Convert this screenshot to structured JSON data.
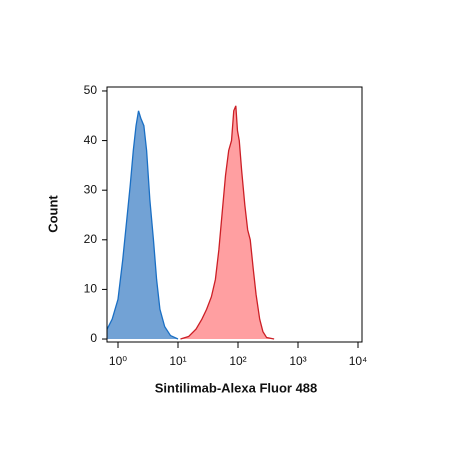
{
  "chart_data": {
    "type": "area",
    "x_label": "Sintilimab-Alexa Fluor 488",
    "y_label": "Count",
    "xscale": "log",
    "xlim": [
      0.656,
      11660
    ],
    "xticks": [
      {
        "value": 1,
        "label": "10⁰"
      },
      {
        "value": 10,
        "label": "10¹"
      },
      {
        "value": 100,
        "label": "10²"
      },
      {
        "value": 1000,
        "label": "10³"
      },
      {
        "value": 10000,
        "label": "10⁴"
      }
    ],
    "ylim": [
      -0.6,
      50.8
    ],
    "yticks": [
      0,
      10,
      20,
      30,
      40,
      50
    ],
    "series": [
      {
        "color": "#1a6fc4",
        "fill": "#6a9dd3",
        "x": [
          0.66,
          0.8,
          1.0,
          1.2,
          1.4,
          1.6,
          1.8,
          2.0,
          2.2,
          2.4,
          2.7,
          3.0,
          3.4,
          3.9,
          4.4,
          5.0,
          6.0,
          7.5,
          10
        ],
        "values": [
          2,
          4,
          8,
          16,
          24,
          31,
          38,
          43,
          46,
          44.5,
          43,
          38,
          28,
          20,
          12,
          6,
          2.5,
          0.7,
          0
        ]
      },
      {
        "color": "#cc1f26",
        "fill": "#ff9a9c",
        "x": [
          11,
          15,
          20,
          25,
          30,
          36,
          42,
          48,
          55,
          62,
          70,
          78,
          85,
          92,
          98,
          105,
          115,
          130,
          145,
          160,
          180,
          200,
          230,
          260,
          300,
          400
        ],
        "values": [
          0,
          0.5,
          2,
          4,
          6,
          8.5,
          12,
          18,
          26,
          33,
          38,
          40,
          46,
          47,
          42,
          40,
          34,
          27,
          22,
          20,
          14,
          9,
          4,
          1.5,
          0.3,
          0
        ]
      }
    ]
  }
}
